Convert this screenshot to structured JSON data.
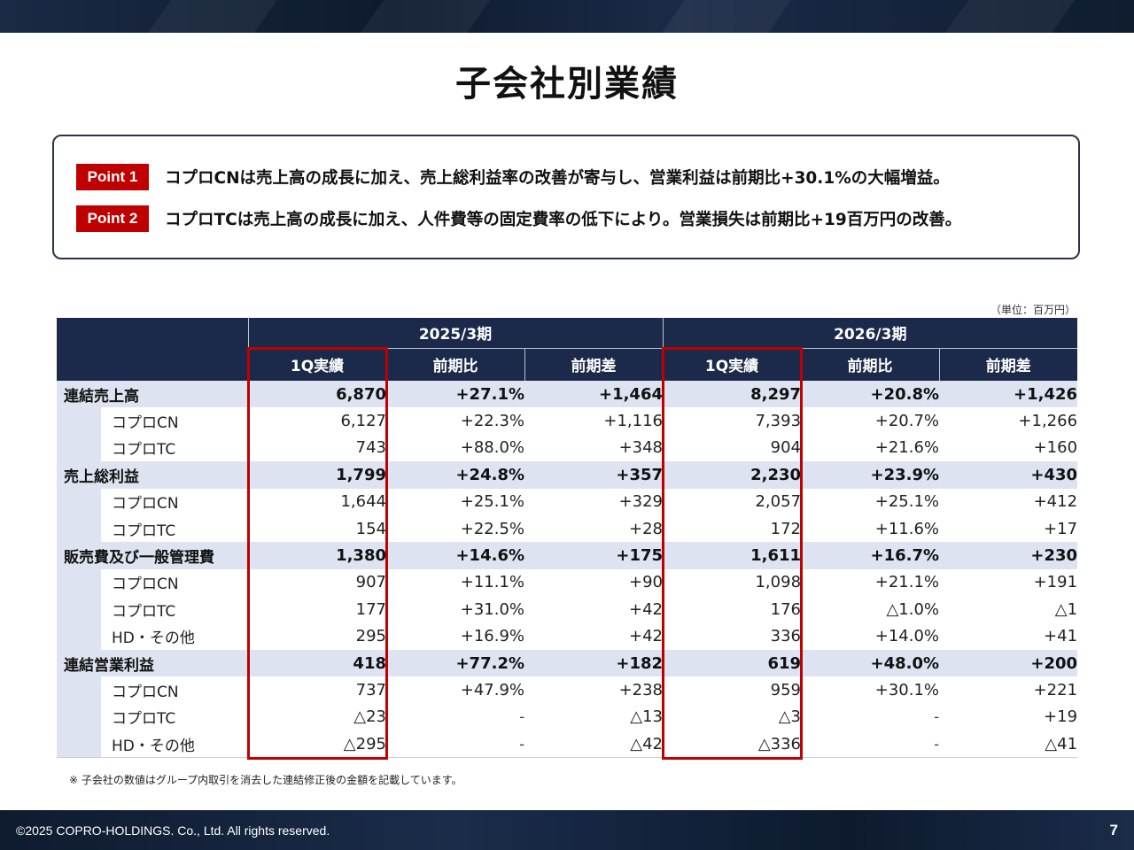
{
  "title": "子会社別業績",
  "points": [
    {
      "badge": "Point 1",
      "text": "コプロCNは売上高の成長に加え、売上総利益率の改善が寄与し、営業利益は前期比+30.1%の大幅増益。"
    },
    {
      "badge": "Point 2",
      "text": "コプロTCは売上高の成長に加え、人件費等の固定費率の低下により。営業損失は前期比+19百万円の改善。"
    }
  ],
  "unit": "（単位：百万円）",
  "table": {
    "periods": [
      "2025/3期",
      "2026/3期"
    ],
    "columns": [
      "1Q実績",
      "前期比",
      "前期差",
      "1Q実績",
      "前期比",
      "前期差"
    ],
    "rows": [
      {
        "label": "連結売上高",
        "type": "main",
        "values": [
          "6,870",
          "+27.1%",
          "+1,464",
          "8,297",
          "+20.8%",
          "+1,426"
        ]
      },
      {
        "label": "コプロCN",
        "type": "sub",
        "values": [
          "6,127",
          "+22.3%",
          "+1,116",
          "7,393",
          "+20.7%",
          "+1,266"
        ]
      },
      {
        "label": "コプロTC",
        "type": "sub",
        "values": [
          "743",
          "+88.0%",
          "+348",
          "904",
          "+21.6%",
          "+160"
        ]
      },
      {
        "label": "売上総利益",
        "type": "main",
        "values": [
          "1,799",
          "+24.8%",
          "+357",
          "2,230",
          "+23.9%",
          "+430"
        ]
      },
      {
        "label": "コプロCN",
        "type": "sub",
        "values": [
          "1,644",
          "+25.1%",
          "+329",
          "2,057",
          "+25.1%",
          "+412"
        ]
      },
      {
        "label": "コプロTC",
        "type": "sub",
        "values": [
          "154",
          "+22.5%",
          "+28",
          "172",
          "+11.6%",
          "+17"
        ]
      },
      {
        "label": "販売費及び一般管理費",
        "type": "main",
        "values": [
          "1,380",
          "+14.6%",
          "+175",
          "1,611",
          "+16.7%",
          "+230"
        ]
      },
      {
        "label": "コプロCN",
        "type": "sub",
        "values": [
          "907",
          "+11.1%",
          "+90",
          "1,098",
          "+21.1%",
          "+191"
        ]
      },
      {
        "label": "コプロTC",
        "type": "sub",
        "values": [
          "177",
          "+31.0%",
          "+42",
          "176",
          "△1.0%",
          "△1"
        ]
      },
      {
        "label": "HD・その他",
        "type": "sub",
        "values": [
          "295",
          "+16.9%",
          "+42",
          "336",
          "+14.0%",
          "+41"
        ]
      },
      {
        "label": "連結営業利益",
        "type": "main",
        "values": [
          "418",
          "+77.2%",
          "+182",
          "619",
          "+48.0%",
          "+200"
        ]
      },
      {
        "label": "コプロCN",
        "type": "sub",
        "values": [
          "737",
          "+47.9%",
          "+238",
          "959",
          "+30.1%",
          "+221"
        ]
      },
      {
        "label": "コプロTC",
        "type": "sub",
        "values": [
          "△23",
          "-",
          "△13",
          "△3",
          "-",
          "+19"
        ]
      },
      {
        "label": "HD・その他",
        "type": "sub",
        "values": [
          "△295",
          "-",
          "△42",
          "△336",
          "-",
          "△41"
        ]
      }
    ]
  },
  "note": "※ 子会社の数値はグループ内取引を消去した連結修正後の金額を記載しています。",
  "footer": {
    "copyright": "©2025 COPRO-HOLDINGS. Co., Ltd. All rights reserved.",
    "page": "7"
  },
  "colors": {
    "navy": "#1b2a4a",
    "accent_red": "#c00000",
    "row_band": "#dde3f1"
  }
}
